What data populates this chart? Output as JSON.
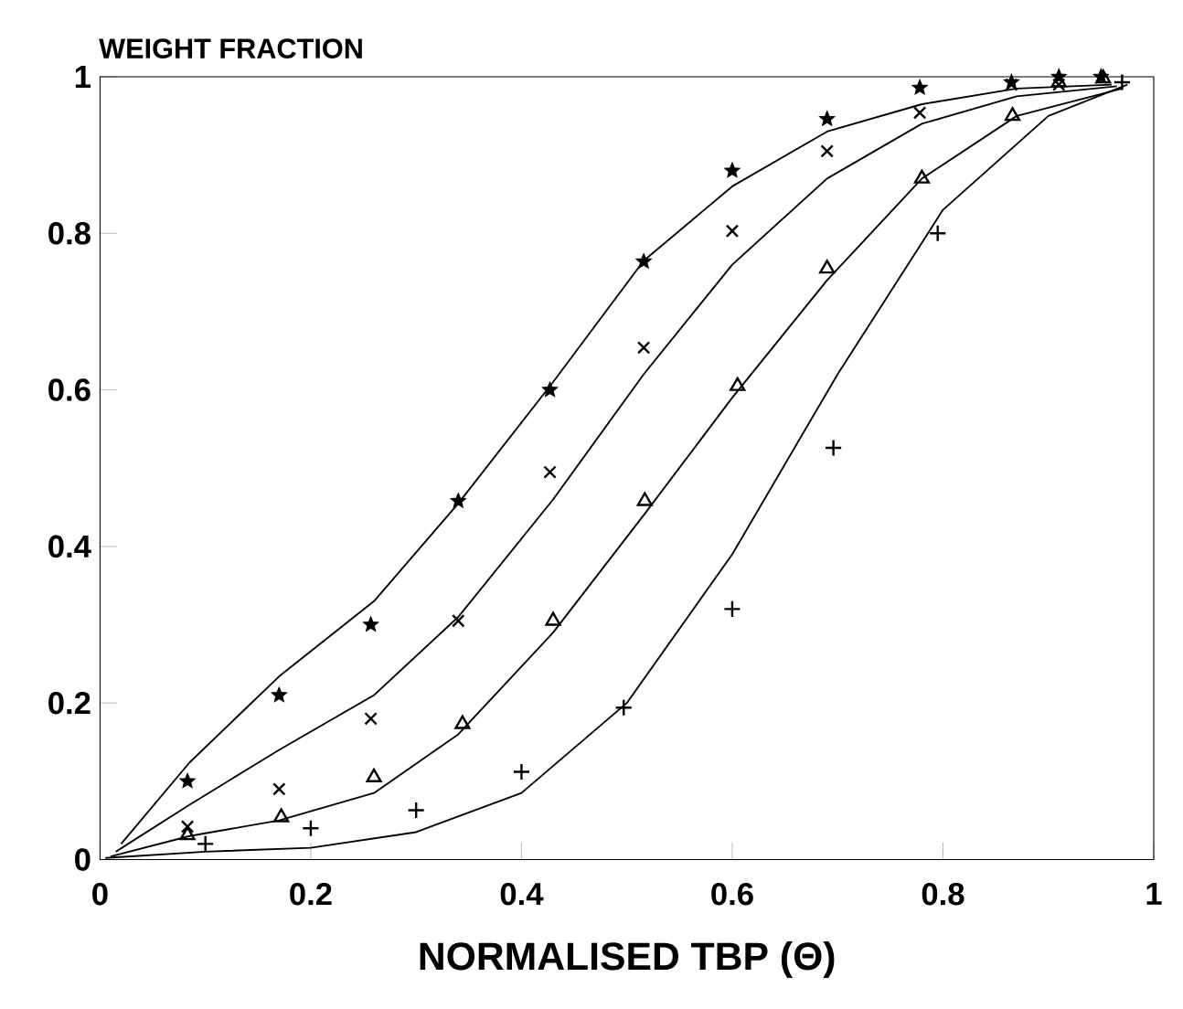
{
  "chart_data": {
    "type": "scatter",
    "xlabel": "NORMALISED TBP (Θ)",
    "ylabel": "WEIGHT FRACTION",
    "xlim": [
      0,
      1
    ],
    "ylim": [
      0,
      1
    ],
    "xticks": [
      0,
      0.2,
      0.4,
      0.6,
      0.8,
      1
    ],
    "yticks": [
      0,
      0.2,
      0.4,
      0.6,
      0.8,
      1
    ],
    "grid": false,
    "series": [
      {
        "marker": "star",
        "color": "#000000",
        "x": [
          0.083,
          0.17,
          0.257,
          0.34,
          0.427,
          0.516,
          0.6,
          0.69,
          0.778,
          0.865,
          0.91,
          0.95
        ],
        "values": [
          0.1,
          0.21,
          0.3,
          0.458,
          0.6,
          0.764,
          0.88,
          0.946,
          0.986,
          0.993,
          1.0,
          1.0
        ]
      },
      {
        "marker": "cross",
        "color": "#000000",
        "x": [
          0.083,
          0.17,
          0.257,
          0.34,
          0.427,
          0.516,
          0.6,
          0.69,
          0.778,
          0.865,
          0.91
        ],
        "values": [
          0.042,
          0.09,
          0.18,
          0.305,
          0.495,
          0.654,
          0.803,
          0.905,
          0.954,
          0.99,
          0.99
        ]
      },
      {
        "marker": "triangle",
        "color": "#000000",
        "x": [
          0.083,
          0.172,
          0.26,
          0.344,
          0.43,
          0.517,
          0.605,
          0.69,
          0.78,
          0.866,
          0.91,
          0.952
        ],
        "values": [
          0.031,
          0.054,
          0.105,
          0.173,
          0.305,
          0.458,
          0.605,
          0.755,
          0.87,
          0.95,
          0.993,
          0.998
        ]
      },
      {
        "marker": "plus",
        "color": "#000000",
        "x": [
          0.1,
          0.2,
          0.3,
          0.4,
          0.497,
          0.6,
          0.696,
          0.795,
          0.97
        ],
        "values": [
          0.02,
          0.04,
          0.063,
          0.112,
          0.194,
          0.32,
          0.526,
          0.8,
          0.993
        ]
      },
      {
        "type": "line",
        "marker": "none",
        "color": "#000000",
        "x": [
          0.02,
          0.085,
          0.17,
          0.26,
          0.34,
          0.43,
          0.516,
          0.6,
          0.69,
          0.78,
          0.87,
          0.96
        ],
        "values": [
          0.02,
          0.124,
          0.234,
          0.33,
          0.455,
          0.61,
          0.765,
          0.86,
          0.93,
          0.965,
          0.985,
          0.99
        ]
      },
      {
        "type": "line",
        "marker": "none",
        "color": "#000000",
        "x": [
          0.015,
          0.085,
          0.17,
          0.26,
          0.34,
          0.43,
          0.516,
          0.6,
          0.69,
          0.78,
          0.87,
          0.965
        ],
        "values": [
          0.01,
          0.07,
          0.14,
          0.21,
          0.31,
          0.46,
          0.62,
          0.76,
          0.87,
          0.94,
          0.975,
          0.988
        ]
      },
      {
        "type": "line",
        "marker": "none",
        "color": "#000000",
        "x": [
          0.01,
          0.085,
          0.17,
          0.26,
          0.34,
          0.43,
          0.516,
          0.6,
          0.69,
          0.78,
          0.87,
          0.97
        ],
        "values": [
          0.004,
          0.03,
          0.05,
          0.085,
          0.16,
          0.29,
          0.44,
          0.59,
          0.74,
          0.87,
          0.95,
          0.985
        ]
      },
      {
        "type": "line",
        "marker": "none",
        "color": "#000000",
        "x": [
          0.005,
          0.1,
          0.2,
          0.3,
          0.4,
          0.5,
          0.6,
          0.7,
          0.8,
          0.9,
          0.975
        ],
        "values": [
          0.002,
          0.01,
          0.015,
          0.035,
          0.085,
          0.2,
          0.39,
          0.62,
          0.83,
          0.95,
          0.99
        ]
      }
    ]
  }
}
